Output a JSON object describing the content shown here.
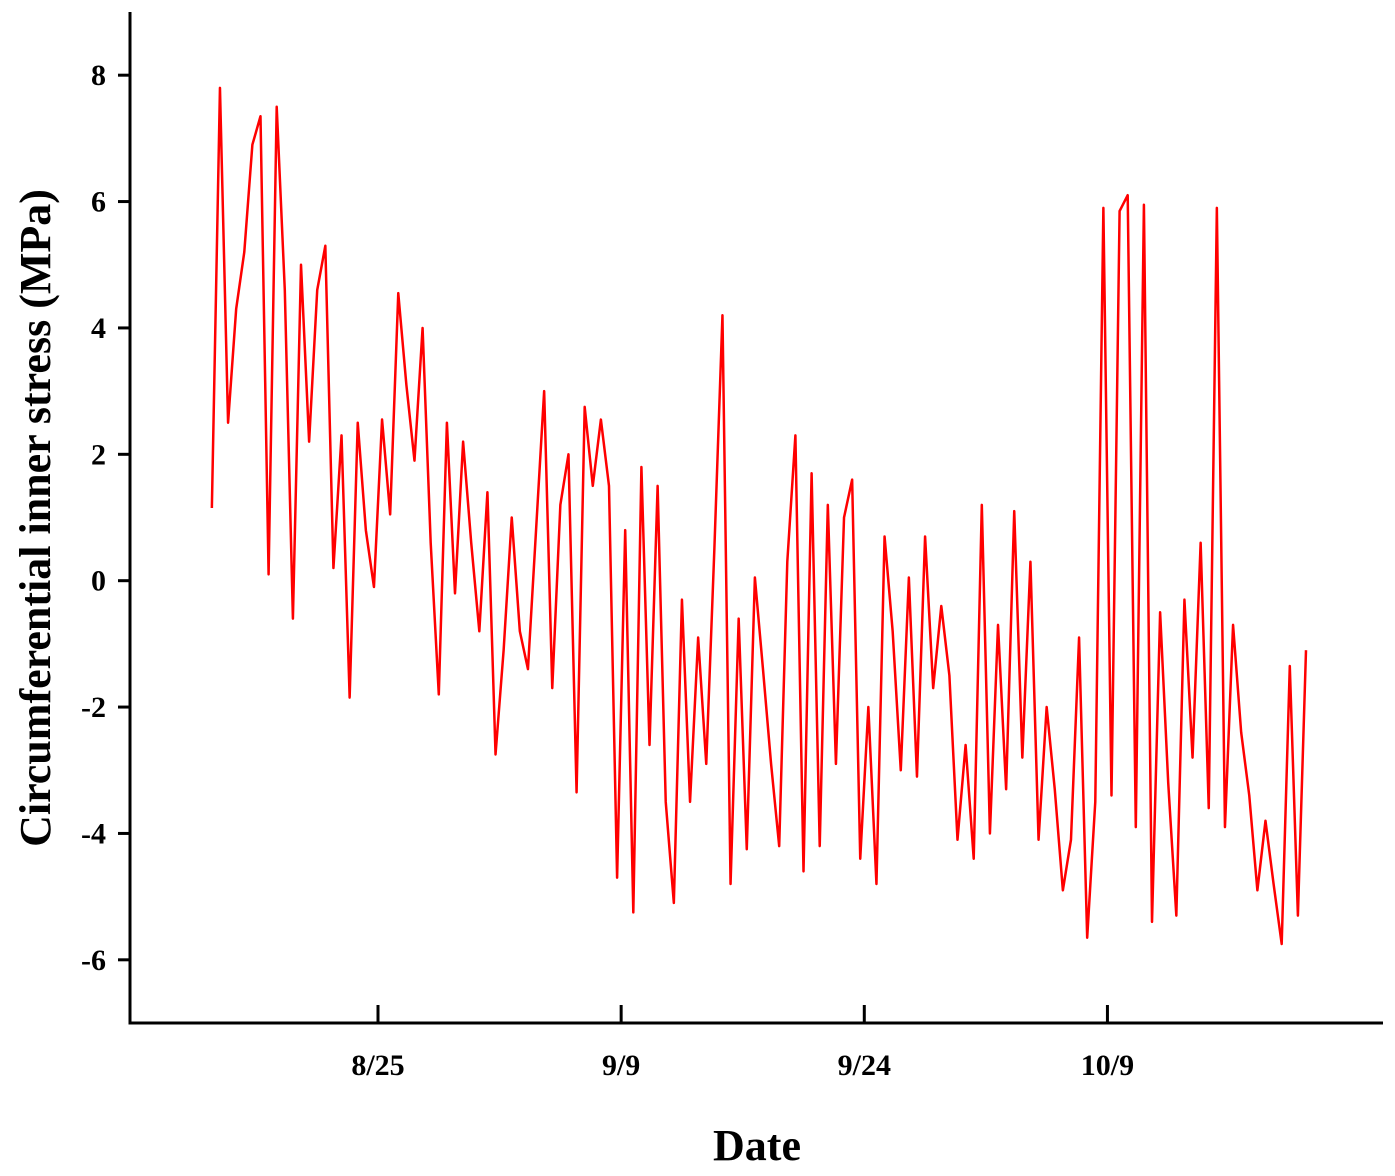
{
  "chart_data": {
    "type": "line",
    "xlabel": "Date",
    "ylabel": "Circumferential inner stress (MPa)",
    "color": "#ff0000",
    "xlim": [
      9.7,
      87
    ],
    "xticks": [
      {
        "value": 25,
        "label": "8/25"
      },
      {
        "value": 40,
        "label": "9/9"
      },
      {
        "value": 55,
        "label": "9/24"
      },
      {
        "value": 70,
        "label": "10/9"
      }
    ],
    "ylim": [
      -7,
      9
    ],
    "yticks": [
      -6,
      -4,
      -2,
      0,
      2,
      4,
      6,
      8
    ],
    "x": [
      14.75,
      15.25,
      15.75,
      16.25,
      16.75,
      17.25,
      17.75,
      18.25,
      18.75,
      19.25,
      19.75,
      20.25,
      20.75,
      21.25,
      21.75,
      22.25,
      22.75,
      23.25,
      23.75,
      24.25,
      24.75,
      25.25,
      25.75,
      26.25,
      26.75,
      27.25,
      27.75,
      28.25,
      28.75,
      29.25,
      29.75,
      30.25,
      30.75,
      31.25,
      31.75,
      32.25,
      32.75,
      33.25,
      33.75,
      34.25,
      34.75,
      35.25,
      35.75,
      36.25,
      36.75,
      37.25,
      37.75,
      38.25,
      38.75,
      39.25,
      39.75,
      40.25,
      40.75,
      41.25,
      41.75,
      42.25,
      42.75,
      43.25,
      43.75,
      44.25,
      44.75,
      45.25,
      45.75,
      46.25,
      46.75,
      47.25,
      47.75,
      48.25,
      48.75,
      49.25,
      49.75,
      50.25,
      50.75,
      51.25,
      51.75,
      52.25,
      52.75,
      53.25,
      53.75,
      54.25,
      54.75,
      55.25,
      55.75,
      56.25,
      56.75,
      57.25,
      57.75,
      58.25,
      58.75,
      59.25,
      59.75,
      60.25,
      60.75,
      61.25,
      61.75,
      62.25,
      62.75,
      63.25,
      63.75,
      64.25,
      64.75,
      65.25,
      65.75,
      66.25,
      66.75,
      67.25,
      67.75,
      68.25,
      68.75,
      69.25,
      69.75,
      70.25,
      70.75,
      71.25,
      71.75,
      72.25,
      72.75,
      73.25,
      73.75,
      74.25,
      74.75,
      75.25,
      75.75,
      76.25,
      76.75,
      77.25,
      77.75,
      78.25,
      78.75,
      79.25,
      79.75,
      80.25,
      80.75,
      81.25,
      81.75,
      82.25
    ],
    "values": [
      1.15,
      7.8,
      2.5,
      4.3,
      5.2,
      6.9,
      7.35,
      0.1,
      7.5,
      4.6,
      -0.6,
      5.0,
      2.2,
      4.6,
      5.3,
      0.2,
      2.3,
      -1.85,
      2.5,
      0.8,
      -0.1,
      2.55,
      1.05,
      4.55,
      3.1,
      1.9,
      4.0,
      0.6,
      -1.8,
      2.5,
      -0.2,
      2.2,
      0.6,
      -0.8,
      1.4,
      -2.75,
      -1.1,
      1.0,
      -0.8,
      -1.4,
      0.8,
      3.0,
      -1.7,
      1.2,
      2.0,
      -3.35,
      2.75,
      1.5,
      2.55,
      1.5,
      -4.7,
      0.8,
      -5.25,
      1.8,
      -2.6,
      1.5,
      -3.5,
      -5.1,
      -0.3,
      -3.5,
      -0.9,
      -2.9,
      0.5,
      4.2,
      -4.8,
      -0.6,
      -4.25,
      0.05,
      -1.4,
      -2.9,
      -4.2,
      0.3,
      2.3,
      -4.6,
      1.7,
      -4.2,
      1.2,
      -2.9,
      1.0,
      1.6,
      -4.4,
      -2.0,
      -4.8,
      0.7,
      -0.8,
      -3.0,
      0.05,
      -3.1,
      0.7,
      -1.7,
      -0.4,
      -1.5,
      -4.1,
      -2.6,
      -4.4,
      1.2,
      -4.0,
      -0.7,
      -3.3,
      1.1,
      -2.8,
      0.3,
      -4.1,
      -2.0,
      -3.3,
      -4.9,
      -4.1,
      -0.9,
      -5.65,
      -3.5,
      5.9,
      -3.4,
      5.85,
      6.1,
      -3.9,
      5.95,
      -5.4,
      -0.5,
      -3.2,
      -5.3,
      -0.3,
      -2.8,
      0.6,
      -3.6,
      5.9,
      -3.9,
      -0.7,
      -2.4,
      -3.4,
      -4.9,
      -3.8,
      -4.8,
      -5.75,
      -1.35,
      -5.3,
      -1.1
    ]
  }
}
